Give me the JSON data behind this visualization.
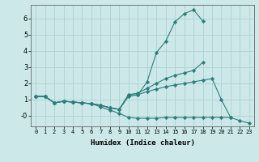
{
  "xlabel": "Humidex (Indice chaleur)",
  "x": [
    0,
    1,
    2,
    3,
    4,
    5,
    6,
    7,
    8,
    9,
    10,
    11,
    12,
    13,
    14,
    15,
    16,
    17,
    18,
    19,
    20,
    21,
    22,
    23
  ],
  "line1": [
    1.2,
    1.2,
    0.8,
    0.9,
    0.85,
    0.8,
    0.75,
    0.65,
    0.5,
    0.4,
    1.3,
    1.3,
    2.1,
    3.9,
    4.6,
    5.8,
    6.3,
    6.55,
    5.85,
    null,
    null,
    null,
    null,
    null
  ],
  "line2": [
    1.2,
    1.2,
    0.8,
    0.9,
    0.85,
    0.8,
    0.75,
    0.65,
    0.5,
    0.4,
    1.3,
    1.4,
    1.7,
    2.0,
    2.3,
    2.5,
    2.65,
    2.8,
    3.3,
    null,
    null,
    null,
    null,
    null
  ],
  "line3": [
    1.2,
    1.2,
    0.8,
    0.9,
    0.85,
    0.8,
    0.75,
    0.65,
    0.5,
    0.4,
    1.2,
    1.3,
    1.5,
    1.65,
    1.8,
    1.9,
    2.0,
    2.1,
    2.2,
    2.3,
    1.0,
    -0.1,
    null,
    null
  ],
  "line4": [
    1.2,
    1.2,
    0.8,
    0.9,
    0.85,
    0.8,
    0.75,
    0.55,
    0.35,
    0.15,
    -0.1,
    -0.15,
    -0.15,
    -0.15,
    -0.1,
    -0.1,
    -0.1,
    -0.1,
    -0.1,
    -0.1,
    -0.1,
    -0.1,
    -0.3,
    -0.45
  ],
  "bg_color": "#cce8e8",
  "line_color": "#2d7d7d",
  "grid_color": "#aacece",
  "ylim": [
    -0.65,
    6.85
  ],
  "xlim": [
    -0.5,
    23.5
  ],
  "ytick_labels": [
    "-0",
    "1",
    "2",
    "3",
    "4",
    "5",
    "6"
  ],
  "ytick_vals": [
    0,
    1,
    2,
    3,
    4,
    5,
    6
  ],
  "xtick_labels": [
    "0",
    "1",
    "2",
    "3",
    "4",
    "5",
    "6",
    "7",
    "8",
    "9",
    "10",
    "11",
    "12",
    "13",
    "14",
    "15",
    "16",
    "17",
    "18",
    "19",
    "20",
    "21",
    "22",
    "23"
  ]
}
